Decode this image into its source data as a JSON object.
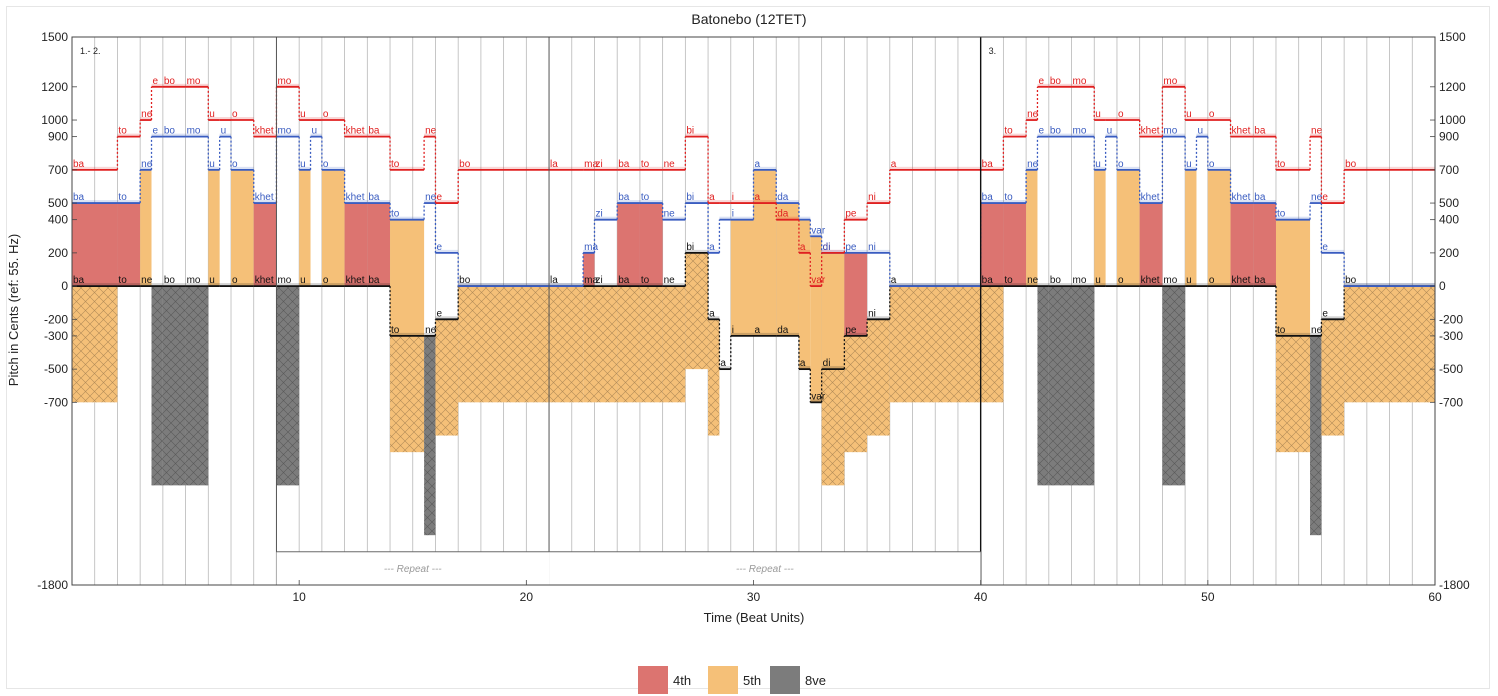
{
  "chart_data": {
    "type": "step-region",
    "title": "Batonebo (12TET)",
    "xlabel": "Time (Beat Units)",
    "ylabel": "Pitch in Cents (ref: 55. Hz)",
    "xlim": [
      0,
      60
    ],
    "ylim": [
      -1800,
      1500
    ],
    "x_ticks": [
      10,
      20,
      30,
      40,
      50,
      60
    ],
    "y_ticks": [
      1500,
      1200,
      1000,
      900,
      700,
      500,
      400,
      200,
      0,
      -200,
      -300,
      -500,
      -700,
      -1800
    ],
    "grid": "vertical beat lines",
    "sections": [
      {
        "label": "1.- 2.",
        "x": 0
      },
      {
        "label": "3.",
        "x": 40
      }
    ],
    "section_boundaries": [
      9,
      21,
      40
    ],
    "repeats": [
      {
        "label": "--- Repeat ---",
        "start": 9,
        "end": 21
      },
      {
        "label": "--- Repeat ---",
        "start": 21,
        "end": 40
      }
    ],
    "interval_colors": {
      "4th": "#dc7470",
      "5th": "#f5c078",
      "8ve": "#7c7c7c"
    },
    "legend": [
      {
        "label": "4th",
        "color": "#dc7470"
      },
      {
        "label": "5th",
        "color": "#f5c078"
      },
      {
        "label": "8ve",
        "color": "#7c7c7c"
      }
    ],
    "voice_colors": {
      "top": "#e02020",
      "middle": "#3a5cc0",
      "bass": "#111111"
    },
    "notes": [
      {
        "start": 0,
        "end": 2,
        "top": 700,
        "mid": 500,
        "bass": 0,
        "syl_top": "ba",
        "syl_mid": "ba",
        "syl_bass": "ba",
        "t_mid": "4th",
        "t_bass": "5th",
        "low": -700
      },
      {
        "start": 2,
        "end": 3,
        "top": 900,
        "mid": 500,
        "bass": 0,
        "syl_top": "to",
        "syl_mid": "to",
        "syl_bass": "to",
        "t_mid": "4th"
      },
      {
        "start": 3,
        "end": 3.5,
        "top": 1000,
        "mid": 700,
        "bass": 0,
        "syl_top": "ne",
        "syl_mid": "ne",
        "syl_bass": "ne",
        "t_mid": "5th"
      },
      {
        "start": 3.5,
        "end": 4,
        "top": 1200,
        "mid": 900,
        "bass": 0,
        "syl_top": "e",
        "syl_mid": "e",
        "syl_bass": "",
        "t_bass": "8ve",
        "low": -1200
      },
      {
        "start": 4,
        "end": 5,
        "top": 1200,
        "mid": 900,
        "bass": 0,
        "syl_top": "bo",
        "syl_mid": "bo",
        "syl_bass": "bo",
        "t_bass": "8ve",
        "low": -1200
      },
      {
        "start": 5,
        "end": 6,
        "top": 1200,
        "mid": 900,
        "bass": 0,
        "syl_top": "mo",
        "syl_mid": "mo",
        "syl_bass": "mo",
        "t_bass": "8ve",
        "low": -1200
      },
      {
        "start": 6,
        "end": 6.5,
        "top": 1000,
        "mid": 700,
        "bass": 0,
        "syl_top": "u",
        "syl_mid": "u",
        "syl_bass": "u",
        "t_mid": "5th"
      },
      {
        "start": 6.5,
        "end": 7,
        "top": 1000,
        "mid": 900,
        "bass": 0,
        "syl_top": "",
        "syl_mid": "u",
        "syl_bass": ""
      },
      {
        "start": 7,
        "end": 8,
        "top": 1000,
        "mid": 700,
        "bass": 0,
        "syl_top": "o",
        "syl_mid": "o",
        "syl_bass": "o",
        "t_mid": "5th"
      },
      {
        "start": 8,
        "end": 9,
        "top": 900,
        "mid": 500,
        "bass": 0,
        "syl_top": "khet",
        "syl_mid": "khet",
        "syl_bass": "khet",
        "t_mid": "4th"
      },
      {
        "start": 9,
        "end": 10,
        "top": 1200,
        "mid": 900,
        "bass": 0,
        "syl_top": "mo",
        "syl_mid": "mo",
        "syl_bass": "mo",
        "t_bass": "8ve",
        "low": -1200
      },
      {
        "start": 10,
        "end": 10.5,
        "top": 1000,
        "mid": 700,
        "bass": 0,
        "syl_top": "u",
        "syl_mid": "u",
        "syl_bass": "u",
        "t_mid": "5th"
      },
      {
        "start": 10.5,
        "end": 11,
        "top": 1000,
        "mid": 900,
        "bass": 0,
        "syl_top": "",
        "syl_mid": "u",
        "syl_bass": ""
      },
      {
        "start": 11,
        "end": 12,
        "top": 1000,
        "mid": 700,
        "bass": 0,
        "syl_top": "o",
        "syl_mid": "o",
        "syl_bass": "o",
        "t_mid": "5th"
      },
      {
        "start": 12,
        "end": 13,
        "top": 900,
        "mid": 500,
        "bass": 0,
        "syl_top": "khet",
        "syl_mid": "khet",
        "syl_bass": "khet",
        "t_mid": "4th"
      },
      {
        "start": 13,
        "end": 14,
        "top": 900,
        "mid": 500,
        "bass": 0,
        "syl_top": "ba",
        "syl_mid": "ba",
        "syl_bass": "ba",
        "t_mid": "4th"
      },
      {
        "start": 14,
        "end": 15.5,
        "top": 700,
        "mid": 400,
        "bass": -300,
        "syl_top": "to",
        "syl_mid": "to",
        "syl_bass": "to",
        "t_mid": "5th",
        "t_bass": "5th",
        "low": -1000
      },
      {
        "start": 15.5,
        "end": 16,
        "top": 900,
        "mid": 500,
        "bass": -300,
        "syl_top": "ne",
        "syl_mid": "ne",
        "syl_bass": "ne",
        "t_bass": "8ve",
        "low": -1500
      },
      {
        "start": 16,
        "end": 17,
        "top": 500,
        "mid": 200,
        "bass": -200,
        "syl_top": "e",
        "syl_mid": "e",
        "syl_bass": "e",
        "t_bass": "5th",
        "low": -900
      },
      {
        "start": 17,
        "end": 21,
        "top": 700,
        "mid": 0,
        "bass": 0,
        "syl_top": "bo",
        "syl_mid": "",
        "syl_bass": "bo",
        "t_mid": "5th",
        "t_bass": "5th",
        "low": -700
      },
      {
        "start": 21,
        "end": 22.5,
        "top": 700,
        "mid": 0,
        "bass": 0,
        "syl_top": "la",
        "syl_mid": "",
        "syl_bass": "la",
        "t_mid": "5th",
        "t_bass": "5th",
        "low": -700
      },
      {
        "start": 22.5,
        "end": 23,
        "top": 700,
        "mid": 200,
        "bass": 0,
        "syl_top": "ma",
        "syl_mid": "ma",
        "syl_bass": "ma",
        "t_mid": "4th",
        "t_bass": "5th",
        "low": -700
      },
      {
        "start": 23,
        "end": 24,
        "top": 700,
        "mid": 400,
        "bass": 0,
        "syl_top": "zi",
        "syl_mid": "zi",
        "syl_bass": "zi",
        "t_bass": "5th",
        "low": -700
      },
      {
        "start": 24,
        "end": 25,
        "top": 700,
        "mid": 500,
        "bass": 0,
        "syl_top": "ba",
        "syl_mid": "ba",
        "syl_bass": "ba",
        "t_mid": "4th",
        "t_bass": "5th",
        "low": -700
      },
      {
        "start": 25,
        "end": 26,
        "top": 700,
        "mid": 500,
        "bass": 0,
        "syl_top": "to",
        "syl_mid": "to",
        "syl_bass": "to",
        "t_mid": "4th",
        "t_bass": "5th",
        "low": -700
      },
      {
        "start": 26,
        "end": 27,
        "top": 700,
        "mid": 400,
        "bass": 0,
        "syl_top": "ne",
        "syl_mid": "ne",
        "syl_bass": "ne",
        "t_bass": "5th",
        "low": -700
      },
      {
        "start": 27,
        "end": 28,
        "top": 900,
        "mid": 500,
        "bass": 200,
        "syl_top": "bi",
        "syl_mid": "bi",
        "syl_bass": "bi",
        "t_bass": "5th",
        "low": -500
      },
      {
        "start": 28,
        "end": 28.5,
        "top": 500,
        "mid": 200,
        "bass": -200,
        "syl_top": "a",
        "syl_mid": "a",
        "syl_bass": "a",
        "t_bass": "5th",
        "low": -900
      },
      {
        "start": 28.5,
        "end": 29,
        "top": 500,
        "mid": 400,
        "bass": -500,
        "syl_top": "",
        "syl_mid": "",
        "syl_bass": "a",
        "t_bass": "5th",
        "low": -500
      },
      {
        "start": 29,
        "end": 30,
        "top": 500,
        "mid": 400,
        "bass": -300,
        "syl_top": "i",
        "syl_mid": "i",
        "syl_bass": "i",
        "t_mid": "5th",
        "t_bass": "5th",
        "low": -300
      },
      {
        "start": 30,
        "end": 31,
        "top": 500,
        "mid": 700,
        "bass": -300,
        "syl_top": "a",
        "syl_mid": "a",
        "syl_bass": "a",
        "t_mid": "5th"
      },
      {
        "start": 31,
        "end": 32,
        "top": 400,
        "mid": 500,
        "bass": -300,
        "syl_top": "da",
        "syl_mid": "da",
        "syl_bass": "da",
        "t_mid": "5th"
      },
      {
        "start": 32,
        "end": 32.5,
        "top": 200,
        "mid": 400,
        "bass": -500,
        "syl_top": "a",
        "syl_mid": "",
        "syl_bass": "a",
        "t_mid": "5th",
        "t_bass": "5th",
        "low": -500
      },
      {
        "start": 32.5,
        "end": 33,
        "top": 0,
        "mid": 300,
        "bass": -700,
        "syl_top": "var",
        "syl_mid": "var",
        "syl_bass": "var",
        "t_mid": "5th",
        "t_bass": "5th",
        "low": -700
      },
      {
        "start": 33,
        "end": 34,
        "top": 200,
        "mid": 200,
        "bass": -500,
        "syl_top": "di",
        "syl_mid": "di",
        "syl_bass": "di",
        "t_mid": "5th",
        "t_bass": "5th",
        "low": -1200
      },
      {
        "start": 34,
        "end": 35,
        "top": 400,
        "mid": 200,
        "bass": -300,
        "syl_top": "pe",
        "syl_mid": "pe",
        "syl_bass": "pe",
        "t_mid": "4th",
        "t_bass": "5th",
        "low": -1000
      },
      {
        "start": 35,
        "end": 36,
        "top": 500,
        "mid": 200,
        "bass": -200,
        "syl_top": "ni",
        "syl_mid": "ni",
        "syl_bass": "ni",
        "t_bass": "5th",
        "low": -900
      },
      {
        "start": 36,
        "end": 40,
        "top": 700,
        "mid": 0,
        "bass": 0,
        "syl_top": "a",
        "syl_mid": "",
        "syl_bass": "a",
        "t_mid": "5th",
        "t_bass": "5th",
        "low": -700
      },
      {
        "start": 40,
        "end": 41,
        "top": 700,
        "mid": 500,
        "bass": 0,
        "syl_top": "ba",
        "syl_mid": "ba",
        "syl_bass": "ba",
        "t_mid": "4th",
        "t_bass": "5th",
        "low": -700
      },
      {
        "start": 41,
        "end": 42,
        "top": 900,
        "mid": 500,
        "bass": 0,
        "syl_top": "to",
        "syl_mid": "to",
        "syl_bass": "to",
        "t_mid": "4th"
      },
      {
        "start": 42,
        "end": 42.5,
        "top": 1000,
        "mid": 700,
        "bass": 0,
        "syl_top": "ne",
        "syl_mid": "ne",
        "syl_bass": "ne",
        "t_mid": "5th"
      },
      {
        "start": 42.5,
        "end": 43,
        "top": 1200,
        "mid": 900,
        "bass": 0,
        "syl_top": "e",
        "syl_mid": "e",
        "syl_bass": "",
        "t_bass": "8ve",
        "low": -1200
      },
      {
        "start": 43,
        "end": 44,
        "top": 1200,
        "mid": 900,
        "bass": 0,
        "syl_top": "bo",
        "syl_mid": "bo",
        "syl_bass": "bo",
        "t_bass": "8ve",
        "low": -1200
      },
      {
        "start": 44,
        "end": 45,
        "top": 1200,
        "mid": 900,
        "bass": 0,
        "syl_top": "mo",
        "syl_mid": "mo",
        "syl_bass": "mo",
        "t_bass": "8ve",
        "low": -1200
      },
      {
        "start": 45,
        "end": 45.5,
        "top": 1000,
        "mid": 700,
        "bass": 0,
        "syl_top": "u",
        "syl_mid": "u",
        "syl_bass": "u",
        "t_mid": "5th"
      },
      {
        "start": 45.5,
        "end": 46,
        "top": 1000,
        "mid": 900,
        "bass": 0,
        "syl_top": "",
        "syl_mid": "u",
        "syl_bass": ""
      },
      {
        "start": 46,
        "end": 47,
        "top": 1000,
        "mid": 700,
        "bass": 0,
        "syl_top": "o",
        "syl_mid": "o",
        "syl_bass": "o",
        "t_mid": "5th"
      },
      {
        "start": 47,
        "end": 48,
        "top": 900,
        "mid": 500,
        "bass": 0,
        "syl_top": "khet",
        "syl_mid": "khet",
        "syl_bass": "khet",
        "t_mid": "4th"
      },
      {
        "start": 48,
        "end": 49,
        "top": 1200,
        "mid": 900,
        "bass": 0,
        "syl_top": "mo",
        "syl_mid": "mo",
        "syl_bass": "mo",
        "t_bass": "8ve",
        "low": -1200
      },
      {
        "start": 49,
        "end": 49.5,
        "top": 1000,
        "mid": 700,
        "bass": 0,
        "syl_top": "u",
        "syl_mid": "u",
        "syl_bass": "u",
        "t_mid": "5th"
      },
      {
        "start": 49.5,
        "end": 50,
        "top": 1000,
        "mid": 900,
        "bass": 0,
        "syl_top": "",
        "syl_mid": "u",
        "syl_bass": ""
      },
      {
        "start": 50,
        "end": 51,
        "top": 1000,
        "mid": 700,
        "bass": 0,
        "syl_top": "o",
        "syl_mid": "o",
        "syl_bass": "o",
        "t_mid": "5th"
      },
      {
        "start": 51,
        "end": 52,
        "top": 900,
        "mid": 500,
        "bass": 0,
        "syl_top": "khet",
        "syl_mid": "khet",
        "syl_bass": "khet",
        "t_mid": "4th"
      },
      {
        "start": 52,
        "end": 53,
        "top": 900,
        "mid": 500,
        "bass": 0,
        "syl_top": "ba",
        "syl_mid": "ba",
        "syl_bass": "ba",
        "t_mid": "4th"
      },
      {
        "start": 53,
        "end": 54.5,
        "top": 700,
        "mid": 400,
        "bass": -300,
        "syl_top": "to",
        "syl_mid": "to",
        "syl_bass": "to",
        "t_mid": "5th",
        "t_bass": "5th",
        "low": -1000
      },
      {
        "start": 54.5,
        "end": 55,
        "top": 900,
        "mid": 500,
        "bass": -300,
        "syl_top": "ne",
        "syl_mid": "ne",
        "syl_bass": "ne",
        "t_bass": "8ve",
        "low": -1500
      },
      {
        "start": 55,
        "end": 56,
        "top": 500,
        "mid": 200,
        "bass": -200,
        "syl_top": "e",
        "syl_mid": "e",
        "syl_bass": "e",
        "t_bass": "5th",
        "low": -900
      },
      {
        "start": 56,
        "end": 60,
        "top": 700,
        "mid": 0,
        "bass": 0,
        "syl_top": "bo",
        "syl_mid": "",
        "syl_bass": "bo",
        "t_mid": "5th",
        "t_bass": "5th",
        "low": -700
      }
    ]
  }
}
